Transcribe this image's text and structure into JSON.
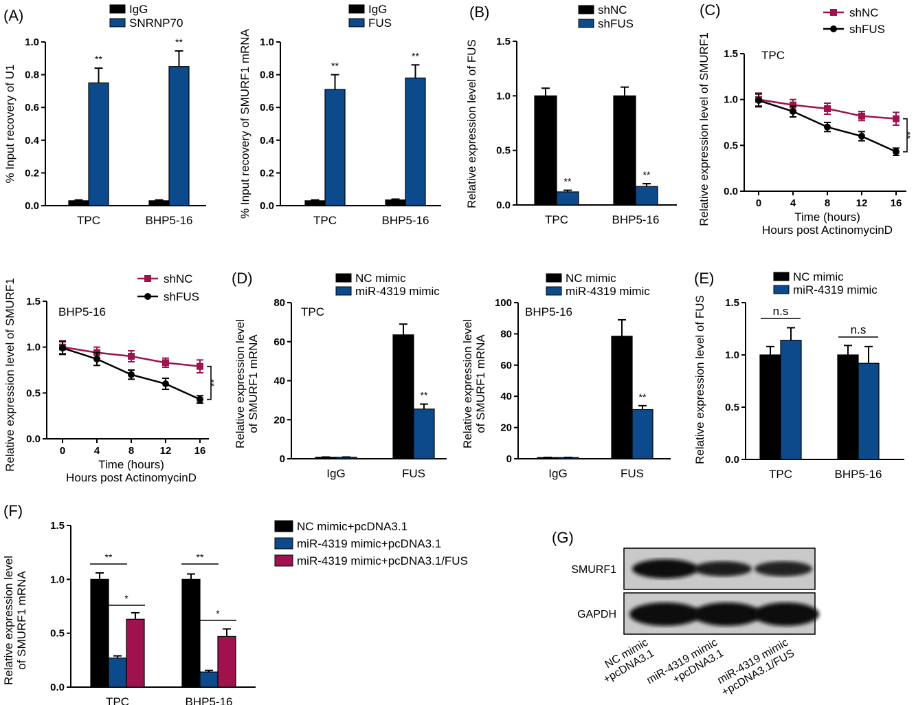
{
  "colors": {
    "black": "#000000",
    "blue": "#0d4a8c",
    "magenta": "#a0124e"
  },
  "chart_data": [
    {
      "id": "A1",
      "panel": "(A)",
      "type": "bar",
      "categories": [
        "TPC",
        "BHP5-16"
      ],
      "series": [
        {
          "name": "IgG",
          "color": "#000000",
          "values": [
            0.03,
            0.03
          ],
          "errors": [
            0.005,
            0.005
          ]
        },
        {
          "name": "SNRNP70",
          "color": "#0d4a8c",
          "values": [
            0.75,
            0.85
          ],
          "errors": [
            0.09,
            0.095
          ]
        }
      ],
      "significance": [
        {
          "category": 0,
          "series": 1,
          "label": "**"
        },
        {
          "category": 1,
          "series": 1,
          "label": "**"
        }
      ],
      "ylabel": "% Input recovery of U1",
      "ylim": [
        0,
        1.0
      ],
      "yticks": [
        "0.0",
        "0.2",
        "0.4",
        "0.6",
        "0.8",
        "1.0"
      ]
    },
    {
      "id": "A2",
      "panel": "",
      "type": "bar",
      "categories": [
        "TPC",
        "BHP5-16"
      ],
      "series": [
        {
          "name": "IgG",
          "color": "#000000",
          "values": [
            0.03,
            0.035
          ],
          "errors": [
            0.005,
            0.005
          ]
        },
        {
          "name": "FUS",
          "color": "#0d4a8c",
          "values": [
            0.71,
            0.78
          ],
          "errors": [
            0.09,
            0.08
          ]
        }
      ],
      "significance": [
        {
          "category": 0,
          "series": 1,
          "label": "**"
        },
        {
          "category": 1,
          "series": 1,
          "label": "**"
        }
      ],
      "ylabel": "% Input recovery of SMURF1 mRNA",
      "ylim": [
        0,
        1.0
      ],
      "yticks": [
        "0.0",
        "0.2",
        "0.4",
        "0.6",
        "0.8",
        "1.0"
      ]
    },
    {
      "id": "B",
      "panel": "(B)",
      "type": "bar",
      "categories": [
        "TPC",
        "BHP5-16"
      ],
      "series": [
        {
          "name": "shNC",
          "color": "#000000",
          "values": [
            1.0,
            1.0
          ],
          "errors": [
            0.07,
            0.08
          ]
        },
        {
          "name": "shFUS",
          "color": "#0d4a8c",
          "values": [
            0.12,
            0.17
          ],
          "errors": [
            0.015,
            0.025
          ]
        }
      ],
      "significance": [
        {
          "category": 0,
          "series": 1,
          "label": "**"
        },
        {
          "category": 1,
          "series": 1,
          "label": "**"
        }
      ],
      "ylabel": "Relative expression level of FUS",
      "ylim": [
        0,
        1.5
      ],
      "yticks": [
        "0.0",
        "0.5",
        "1.0",
        "1.5"
      ]
    },
    {
      "id": "C1",
      "panel": "(C)",
      "type": "line",
      "x": [
        0,
        4,
        8,
        12,
        16
      ],
      "series": [
        {
          "name": "shNC",
          "color": "#a0124e",
          "marker": "square",
          "values": [
            1.0,
            0.94,
            0.9,
            0.82,
            0.79
          ],
          "errors": [
            0.07,
            0.06,
            0.06,
            0.05,
            0.07
          ]
        },
        {
          "name": "shFUS",
          "color": "#000000",
          "marker": "circle",
          "values": [
            0.99,
            0.87,
            0.7,
            0.6,
            0.43
          ],
          "errors": [
            0.07,
            0.06,
            0.05,
            0.05,
            0.04
          ]
        }
      ],
      "annotation": "TPC",
      "sig": "**",
      "xlabel": "Time (hours)",
      "xlabel2": "Hours post ActinomycinD",
      "ylabel": "Relative expression level of SMURF1",
      "xticks": [
        "0",
        "4",
        "8",
        "12",
        "16"
      ],
      "yticks": [
        "0.0",
        "0.5",
        "1.0",
        "1.5"
      ],
      "xlim": [
        0,
        16
      ],
      "ylim": [
        0,
        1.5
      ]
    },
    {
      "id": "C2",
      "panel": "",
      "type": "line",
      "x": [
        0,
        4,
        8,
        12,
        16
      ],
      "series": [
        {
          "name": "shNC",
          "color": "#a0124e",
          "marker": "square",
          "values": [
            1.0,
            0.94,
            0.9,
            0.83,
            0.79
          ],
          "errors": [
            0.07,
            0.06,
            0.06,
            0.05,
            0.07
          ]
        },
        {
          "name": "shFUS",
          "color": "#000000",
          "marker": "circle",
          "values": [
            0.99,
            0.87,
            0.7,
            0.6,
            0.43
          ],
          "errors": [
            0.07,
            0.07,
            0.05,
            0.06,
            0.04
          ]
        }
      ],
      "annotation": "BHP5-16",
      "sig": "**",
      "xlabel": "Time (hours)",
      "xlabel2": "Hours post ActinomycinD",
      "ylabel": "Relative expression level of SMURF1",
      "xticks": [
        "0",
        "4",
        "8",
        "12",
        "16"
      ],
      "yticks": [
        "0.0",
        "0.5",
        "1.0",
        "1.5"
      ],
      "xlim": [
        0,
        16
      ],
      "ylim": [
        0,
        1.5
      ]
    },
    {
      "id": "D1",
      "panel": "(D)",
      "type": "bar",
      "categories": [
        "IgG",
        "FUS"
      ],
      "series": [
        {
          "name": "NC mimic",
          "color": "#000000",
          "values": [
            0.8,
            63.5
          ],
          "errors": [
            0.1,
            5.5
          ]
        },
        {
          "name": "miR-4319 mimic",
          "color": "#0d4a8c",
          "values": [
            0.8,
            25.5
          ],
          "errors": [
            0.1,
            2.5
          ]
        }
      ],
      "significance": [
        {
          "category": 1,
          "series": 1,
          "label": "**"
        }
      ],
      "annotation": "TPC",
      "ylabel": "Relative expression level",
      "ylabel2": "of SMURF1 mRNA",
      "ylim": [
        0,
        80
      ],
      "yticks": [
        "0",
        "20",
        "40",
        "60",
        "80"
      ]
    },
    {
      "id": "D2",
      "panel": "",
      "type": "bar",
      "categories": [
        "IgG",
        "FUS"
      ],
      "series": [
        {
          "name": "NC mimic",
          "color": "#000000",
          "values": [
            0.8,
            78.5
          ],
          "errors": [
            0.1,
            10.5
          ]
        },
        {
          "name": "miR-4319 mimic",
          "color": "#0d4a8c",
          "values": [
            0.8,
            31.5
          ],
          "errors": [
            0.1,
            2.5
          ]
        }
      ],
      "significance": [
        {
          "category": 1,
          "series": 1,
          "label": "**"
        }
      ],
      "annotation": "BHP5-16",
      "ylabel": "Relative expression level",
      "ylabel2": "of SMURF1 mRNA",
      "ylim": [
        0,
        100
      ],
      "yticks": [
        "0",
        "20",
        "40",
        "60",
        "80",
        "100"
      ]
    },
    {
      "id": "E",
      "panel": "(E)",
      "type": "bar",
      "categories": [
        "TPC",
        "BHP5-16"
      ],
      "series": [
        {
          "name": "NC mimic",
          "color": "#000000",
          "values": [
            1.0,
            1.0
          ],
          "errors": [
            0.08,
            0.09
          ]
        },
        {
          "name": "miR-4319 mimic",
          "color": "#0d4a8c",
          "values": [
            1.14,
            0.92
          ],
          "errors": [
            0.12,
            0.16
          ]
        }
      ],
      "brackets": [
        {
          "category": 0,
          "from": 0,
          "to": 1,
          "label": "n.s"
        },
        {
          "category": 1,
          "from": 0,
          "to": 1,
          "label": "n.s"
        }
      ],
      "ylabel": "Relative expression level of FUS",
      "ylim": [
        0,
        1.5
      ],
      "yticks": [
        "0.0",
        "0.5",
        "1.0",
        "1.5"
      ]
    },
    {
      "id": "F",
      "panel": "(F)",
      "type": "bar",
      "categories": [
        "TPC",
        "BHP5-16"
      ],
      "series": [
        {
          "name": "NC mimic+pcDNA3.1",
          "color": "#000000",
          "values": [
            1.0,
            1.0
          ],
          "errors": [
            0.06,
            0.05
          ]
        },
        {
          "name": "miR-4319 mimic+pcDNA3.1",
          "color": "#0d4a8c",
          "values": [
            0.27,
            0.14
          ],
          "errors": [
            0.02,
            0.015
          ]
        },
        {
          "name": "miR-4319 mimic+pcDNA3.1/FUS",
          "color": "#a0124e",
          "values": [
            0.63,
            0.47
          ],
          "errors": [
            0.06,
            0.07
          ]
        }
      ],
      "brackets": [
        {
          "category": 0,
          "from": 0,
          "to": 1,
          "label": "**"
        },
        {
          "category": 0,
          "from": 1,
          "to": 2,
          "label": "*"
        },
        {
          "category": 1,
          "from": 0,
          "to": 1,
          "label": "**"
        },
        {
          "category": 1,
          "from": 1,
          "to": 2,
          "label": "*"
        }
      ],
      "ylabel": "Relative expression level",
      "ylabel2": "of SMURF1 mRNA",
      "ylim": [
        0,
        1.5
      ],
      "yticks": [
        "0.0",
        "0.5",
        "1.0",
        "1.5"
      ]
    }
  ],
  "blot": {
    "panel": "(G)",
    "rows": [
      "SMURF1",
      "GAPDH"
    ],
    "lanes": [
      [
        "NC mimic",
        "+pcDNA3.1"
      ],
      [
        "miR-4319 mimic",
        "+pcDNA3.1"
      ],
      [
        "miR-4319 mimic",
        "+pcDNA3.1/FUS"
      ]
    ]
  }
}
